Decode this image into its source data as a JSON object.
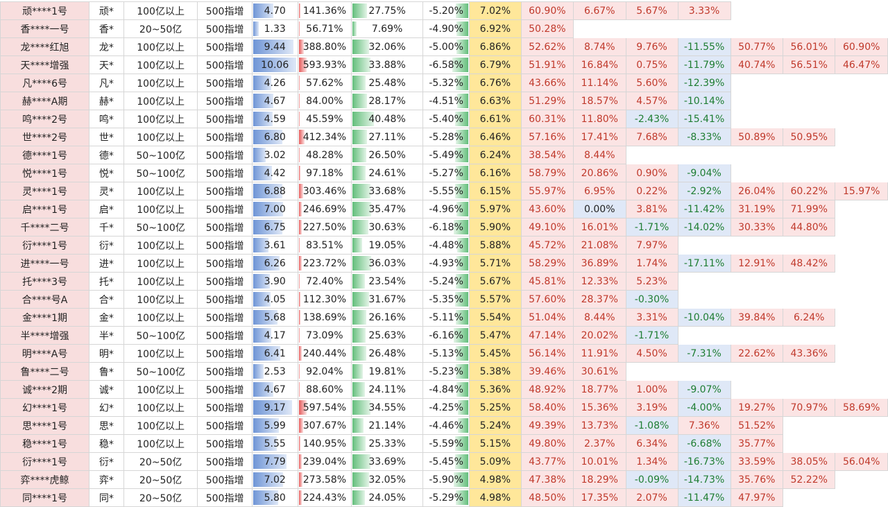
{
  "table": {
    "rows": [
      {
        "name": "顽****1号",
        "short": "顽*",
        "scale": "100亿以上",
        "index": "500指增",
        "leverage": "4.70",
        "ret": "141.36%",
        "win": "27.75%",
        "dd": "-5.20%",
        "ann": "7.02%",
        "v": [
          "60.90%",
          "6.67%",
          "5.67%",
          "3.33%",
          "",
          "",
          ""
        ]
      },
      {
        "name": "香****一号",
        "short": "香*",
        "scale": "20~50亿",
        "index": "500指增",
        "leverage": "1.33",
        "ret": "56.71%",
        "win": "7.69%",
        "dd": "-4.90%",
        "ann": "6.92%",
        "v": [
          "50.28%",
          "",
          "",
          "",
          "",
          "",
          ""
        ]
      },
      {
        "name": "龙****红旭",
        "short": "龙*",
        "scale": "100亿以上",
        "index": "500指增",
        "leverage": "9.44",
        "ret": "388.80%",
        "win": "32.06%",
        "dd": "-5.00%",
        "ann": "6.86%",
        "v": [
          "52.62%",
          "8.74%",
          "9.76%",
          "-11.55%",
          "50.77%",
          "56.01%",
          "60.90%"
        ]
      },
      {
        "name": "天****增强",
        "short": "天*",
        "scale": "100亿以上",
        "index": "500指增",
        "leverage": "10.06",
        "ret": "593.93%",
        "win": "33.88%",
        "dd": "-6.58%",
        "ann": "6.79%",
        "v": [
          "51.91%",
          "16.84%",
          "0.75%",
          "-11.79%",
          "40.74%",
          "56.51%",
          "46.47%"
        ]
      },
      {
        "name": "凡****6号",
        "short": "凡*",
        "scale": "100亿以上",
        "index": "500指增",
        "leverage": "4.26",
        "ret": "57.62%",
        "win": "25.48%",
        "dd": "-5.32%",
        "ann": "6.76%",
        "v": [
          "43.66%",
          "11.14%",
          "5.60%",
          "-12.39%",
          "",
          "",
          ""
        ]
      },
      {
        "name": "赫****A期",
        "short": "赫*",
        "scale": "100亿以上",
        "index": "500指增",
        "leverage": "4.67",
        "ret": "84.00%",
        "win": "28.17%",
        "dd": "-4.51%",
        "ann": "6.63%",
        "v": [
          "51.29%",
          "18.57%",
          "4.57%",
          "-10.14%",
          "",
          "",
          ""
        ]
      },
      {
        "name": "鸣****2号",
        "short": "鸣*",
        "scale": "100亿以上",
        "index": "500指增",
        "leverage": "4.59",
        "ret": "45.59%",
        "win": "40.48%",
        "dd": "-5.40%",
        "ann": "6.61%",
        "v": [
          "60.31%",
          "11.80%",
          "-2.43%",
          "-15.41%",
          "",
          "",
          ""
        ]
      },
      {
        "name": "世****2号",
        "short": "世*",
        "scale": "100亿以上",
        "index": "500指增",
        "leverage": "6.80",
        "ret": "412.34%",
        "win": "27.11%",
        "dd": "-5.28%",
        "ann": "6.46%",
        "v": [
          "57.16%",
          "17.41%",
          "7.68%",
          "-8.33%",
          "50.89%",
          "50.95%",
          ""
        ]
      },
      {
        "name": "德****1号",
        "short": "德*",
        "scale": "50~100亿",
        "index": "500指增",
        "leverage": "3.02",
        "ret": "48.28%",
        "win": "26.50%",
        "dd": "-5.49%",
        "ann": "6.24%",
        "v": [
          "38.54%",
          "8.44%",
          "",
          "",
          "",
          "",
          ""
        ]
      },
      {
        "name": "悦****1号",
        "short": "悦*",
        "scale": "50~100亿",
        "index": "500指增",
        "leverage": "4.42",
        "ret": "97.18%",
        "win": "24.61%",
        "dd": "-5.27%",
        "ann": "6.16%",
        "v": [
          "58.79%",
          "20.86%",
          "0.90%",
          "-9.04%",
          "",
          "",
          ""
        ]
      },
      {
        "name": "灵****1号",
        "short": "灵*",
        "scale": "100亿以上",
        "index": "500指增",
        "leverage": "6.88",
        "ret": "303.46%",
        "win": "33.68%",
        "dd": "-5.55%",
        "ann": "6.15%",
        "v": [
          "55.97%",
          "6.95%",
          "0.22%",
          "-2.92%",
          "26.04%",
          "60.22%",
          "15.97%"
        ]
      },
      {
        "name": "启****1号",
        "short": "启*",
        "scale": "100亿以上",
        "index": "500指增",
        "leverage": "7.00",
        "ret": "246.69%",
        "win": "35.47%",
        "dd": "-4.96%",
        "ann": "5.97%",
        "v": [
          "43.60%",
          "0.00%",
          "3.81%",
          "-11.42%",
          "31.19%",
          "71.99%",
          ""
        ]
      },
      {
        "name": "千****二号",
        "short": "千*",
        "scale": "50~100亿",
        "index": "500指增",
        "leverage": "6.75",
        "ret": "227.50%",
        "win": "30.63%",
        "dd": "-6.18%",
        "ann": "5.90%",
        "v": [
          "49.10%",
          "16.01%",
          "-1.71%",
          "-14.02%",
          "30.33%",
          "44.80%",
          ""
        ]
      },
      {
        "name": "衍****1号",
        "short": "衍*",
        "scale": "100亿以上",
        "index": "500指增",
        "leverage": "3.61",
        "ret": "83.51%",
        "win": "19.05%",
        "dd": "-4.48%",
        "ann": "5.88%",
        "v": [
          "45.72%",
          "21.08%",
          "7.97%",
          "",
          "",
          "",
          ""
        ]
      },
      {
        "name": "进****一号",
        "short": "进*",
        "scale": "100亿以上",
        "index": "500指增",
        "leverage": "6.26",
        "ret": "223.72%",
        "win": "36.03%",
        "dd": "-4.93%",
        "ann": "5.71%",
        "v": [
          "58.29%",
          "36.89%",
          "1.74%",
          "-17.11%",
          "12.91%",
          "48.42%",
          ""
        ]
      },
      {
        "name": "托****3号",
        "short": "托*",
        "scale": "100亿以上",
        "index": "500指增",
        "leverage": "3.90",
        "ret": "72.40%",
        "win": "23.54%",
        "dd": "-5.24%",
        "ann": "5.67%",
        "v": [
          "45.81%",
          "12.33%",
          "5.23%",
          "",
          "",
          "",
          ""
        ]
      },
      {
        "name": "合****号A",
        "short": "合*",
        "scale": "100亿以上",
        "index": "500指增",
        "leverage": "4.05",
        "ret": "112.30%",
        "win": "31.67%",
        "dd": "-5.35%",
        "ann": "5.57%",
        "v": [
          "57.60%",
          "28.37%",
          "-0.30%",
          "",
          "",
          "",
          ""
        ]
      },
      {
        "name": "金****1期",
        "short": "金*",
        "scale": "100亿以上",
        "index": "500指增",
        "leverage": "5.68",
        "ret": "138.69%",
        "win": "26.16%",
        "dd": "-5.11%",
        "ann": "5.54%",
        "v": [
          "51.04%",
          "8.44%",
          "3.31%",
          "-10.04%",
          "39.84%",
          "6.24%",
          ""
        ]
      },
      {
        "name": "半****增强",
        "short": "半*",
        "scale": "50~100亿",
        "index": "500指增",
        "leverage": "4.17",
        "ret": "73.09%",
        "win": "25.63%",
        "dd": "-6.16%",
        "ann": "5.47%",
        "v": [
          "47.14%",
          "20.02%",
          "-1.71%",
          "",
          "",
          "",
          ""
        ]
      },
      {
        "name": "明****A号",
        "short": "明*",
        "scale": "100亿以上",
        "index": "500指增",
        "leverage": "6.41",
        "ret": "240.44%",
        "win": "26.48%",
        "dd": "-5.13%",
        "ann": "5.45%",
        "v": [
          "56.14%",
          "11.91%",
          "4.50%",
          "-7.31%",
          "22.62%",
          "43.36%",
          ""
        ]
      },
      {
        "name": "鲁****二号",
        "short": "鲁*",
        "scale": "50~100亿",
        "index": "500指增",
        "leverage": "2.53",
        "ret": "92.04%",
        "win": "19.81%",
        "dd": "-5.23%",
        "ann": "5.38%",
        "v": [
          "39.46%",
          "30.61%",
          "",
          "",
          "",
          "",
          ""
        ]
      },
      {
        "name": "诚****2期",
        "short": "诚*",
        "scale": "100亿以上",
        "index": "500指增",
        "leverage": "4.67",
        "ret": "88.60%",
        "win": "24.11%",
        "dd": "-4.84%",
        "ann": "5.36%",
        "v": [
          "48.92%",
          "18.77%",
          "1.00%",
          "-9.07%",
          "",
          "",
          ""
        ]
      },
      {
        "name": "幻****1号",
        "short": "幻*",
        "scale": "100亿以上",
        "index": "500指增",
        "leverage": "9.17",
        "ret": "597.54%",
        "win": "34.55%",
        "dd": "-4.25%",
        "ann": "5.25%",
        "v": [
          "58.40%",
          "15.36%",
          "3.19%",
          "-4.00%",
          "19.27%",
          "70.97%",
          "58.69%"
        ]
      },
      {
        "name": "思****1号",
        "short": "思*",
        "scale": "100亿以上",
        "index": "500指增",
        "leverage": "5.99",
        "ret": "307.67%",
        "win": "21.14%",
        "dd": "-4.46%",
        "ann": "5.24%",
        "v": [
          "49.39%",
          "13.73%",
          "-1.08%",
          "7.36%",
          "51.52%",
          "",
          ""
        ]
      },
      {
        "name": "稳****1号",
        "short": "稳*",
        "scale": "100亿以上",
        "index": "500指增",
        "leverage": "5.55",
        "ret": "140.95%",
        "win": "25.33%",
        "dd": "-5.59%",
        "ann": "5.15%",
        "v": [
          "49.80%",
          "2.37%",
          "6.34%",
          "-6.68%",
          "35.77%",
          "",
          ""
        ]
      },
      {
        "name": "衍****1号",
        "short": "衍*",
        "scale": "20~50亿",
        "index": "500指增",
        "leverage": "7.79",
        "ret": "239.04%",
        "win": "33.69%",
        "dd": "-5.45%",
        "ann": "5.09%",
        "v": [
          "43.77%",
          "10.01%",
          "1.34%",
          "-16.73%",
          "33.59%",
          "38.05%",
          "56.04%"
        ]
      },
      {
        "name": "弈****虎鲸",
        "short": "弈*",
        "scale": "20~50亿",
        "index": "500指增",
        "leverage": "7.02",
        "ret": "273.58%",
        "win": "32.05%",
        "dd": "-5.90%",
        "ann": "4.98%",
        "v": [
          "47.38%",
          "18.29%",
          "-0.09%",
          "-14.73%",
          "35.76%",
          "52.22%",
          ""
        ]
      },
      {
        "name": "同****1号",
        "short": "同*",
        "scale": "20~50亿",
        "index": "500指增",
        "leverage": "5.80",
        "ret": "224.43%",
        "win": "24.05%",
        "dd": "-5.29%",
        "ann": "4.98%",
        "v": [
          "48.50%",
          "17.35%",
          "2.07%",
          "-11.47%",
          "47.97%",
          "",
          ""
        ]
      }
    ]
  },
  "colors": {
    "accent_red": "#c0392b",
    "accent_green": "#1e7d32",
    "annual_bg": "#ffe79a",
    "name_bg": "#f8dede"
  }
}
